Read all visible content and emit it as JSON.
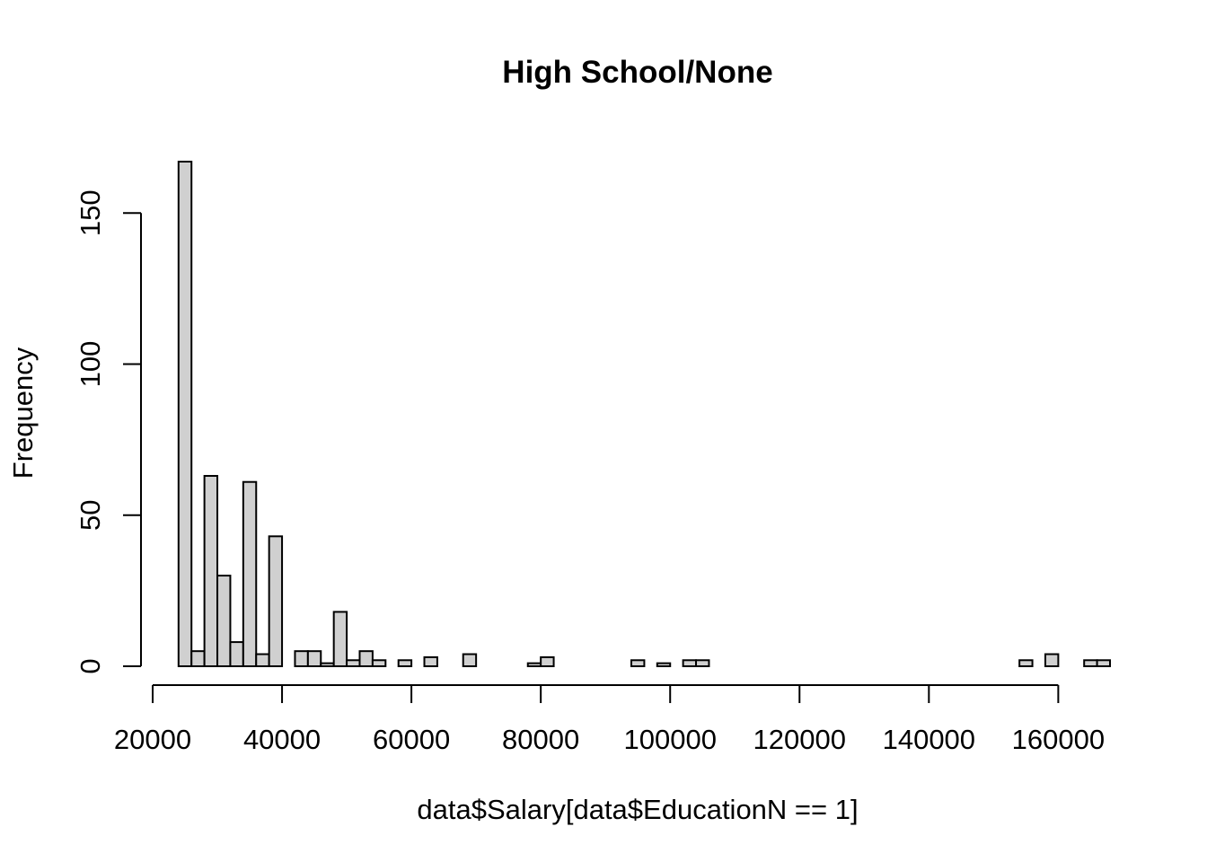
{
  "chart_data": {
    "type": "histogram",
    "title": "High School/None",
    "xlabel": "data$Salary[data$EducationN == 1]",
    "ylabel": "Frequency",
    "bin_width": 2000,
    "bin_start": 24000,
    "xlim": [
      20000,
      168000
    ],
    "ylim": [
      0,
      167
    ],
    "x_ticks": [
      20000,
      40000,
      60000,
      80000,
      100000,
      120000,
      140000,
      160000
    ],
    "x_tick_labels": [
      "20000",
      "40000",
      "60000",
      "80000",
      "100000",
      "120000",
      "140000",
      "160000"
    ],
    "y_ticks": [
      0,
      50,
      100,
      150
    ],
    "y_tick_labels": [
      "0",
      "50",
      "100",
      "150"
    ],
    "counts": [
      167,
      5,
      63,
      30,
      8,
      61,
      4,
      43,
      0,
      5,
      5,
      1,
      18,
      2,
      5,
      2,
      0,
      2,
      0,
      3,
      0,
      0,
      4,
      0,
      0,
      0,
      0,
      1,
      3,
      0,
      0,
      0,
      0,
      0,
      0,
      2,
      0,
      1,
      0,
      2,
      2,
      0,
      0,
      0,
      0,
      0,
      0,
      0,
      0,
      0,
      0,
      0,
      0,
      0,
      0,
      0,
      0,
      0,
      0,
      0,
      0,
      0,
      0,
      0,
      0,
      2,
      0,
      4,
      0,
      0,
      2,
      2
    ],
    "bar_fill": "#d0d0d0",
    "bar_stroke": "#000000"
  }
}
